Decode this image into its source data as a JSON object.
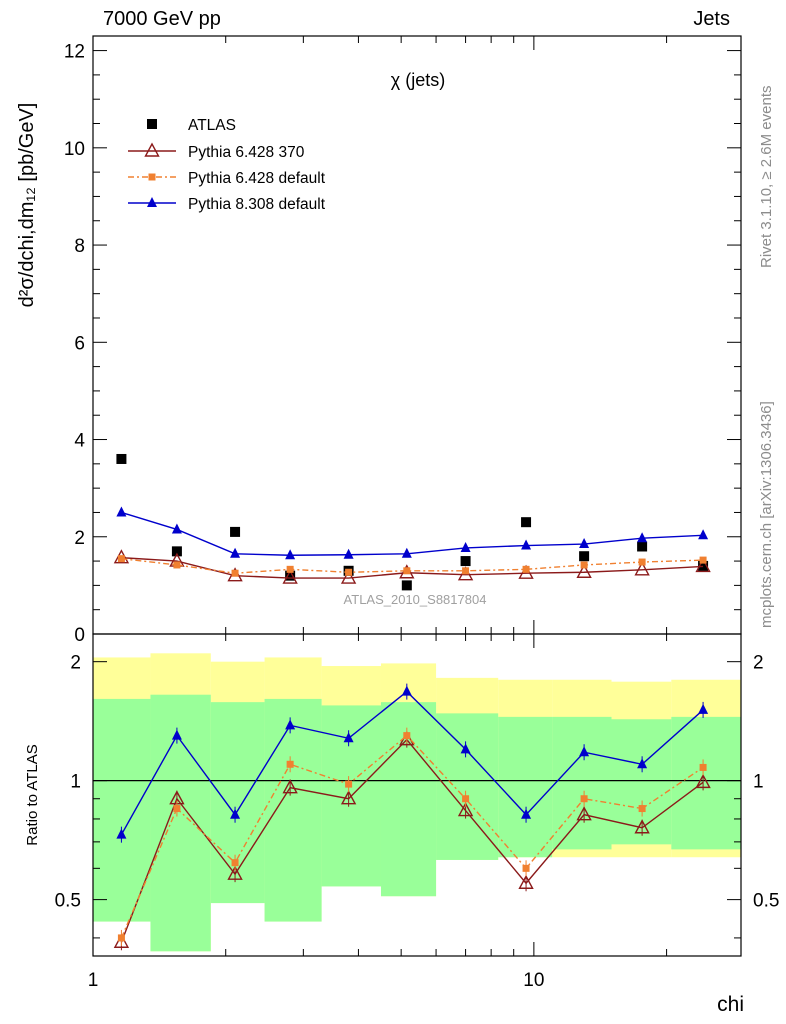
{
  "header": {
    "energy_label": "7000 GeV pp",
    "process_label": "Jets"
  },
  "side": {
    "rivet_label": "Rivet 3.1.10, ≥ 2.6M events",
    "mcplots_label": "mcplots.cern.ch [arXiv:1306.3436]"
  },
  "chart_data": [
    {
      "type": "scatter",
      "panel": "main",
      "title": "χ (jets)",
      "ylabel": "d²σ/dchi,dm₁₂ [pb/GeV]",
      "xlabel": "chi",
      "xscale": "log",
      "xlim": [
        1,
        29.5
      ],
      "ylim": [
        0,
        12.3
      ],
      "yticks": [
        "0",
        "2",
        "4",
        "6",
        "8",
        "10",
        "12"
      ],
      "xticks": [
        "1",
        "10"
      ],
      "watermark": "ATLAS_2010_S8817804",
      "legend_position": "top-left",
      "x": [
        1.16,
        1.55,
        2.1,
        2.8,
        3.8,
        5.15,
        7.0,
        9.6,
        13.0,
        17.6,
        24.2
      ],
      "series": [
        {
          "name": "ATLAS",
          "color": "#000000",
          "marker": "square",
          "line": "none",
          "values": [
            3.6,
            1.7,
            2.1,
            1.2,
            1.3,
            1.0,
            1.5,
            2.3,
            1.6,
            1.8,
            1.4
          ]
        },
        {
          "name": "Pythia 6.428 370",
          "color": "#8b1a1a",
          "marker": "open-triangle",
          "line": "solid",
          "values": [
            1.57,
            1.5,
            1.2,
            1.15,
            1.15,
            1.26,
            1.22,
            1.25,
            1.27,
            1.32,
            1.39
          ]
        },
        {
          "name": "Pythia 6.428 default",
          "color": "#f08030",
          "marker": "square-small",
          "line": "dashdot",
          "values": [
            1.55,
            1.42,
            1.25,
            1.33,
            1.27,
            1.3,
            1.3,
            1.33,
            1.42,
            1.48,
            1.52
          ]
        },
        {
          "name": "Pythia 8.308 default",
          "color": "#0000cc",
          "marker": "triangle",
          "line": "solid",
          "values": [
            2.5,
            2.15,
            1.65,
            1.62,
            1.63,
            1.65,
            1.77,
            1.82,
            1.85,
            1.97,
            2.03
          ]
        }
      ]
    },
    {
      "type": "line",
      "panel": "ratio",
      "ylabel": "Ratio to ATLAS",
      "xlabel": "chi",
      "xscale": "log",
      "yscale": "log",
      "ylim": [
        0.36,
        2.35
      ],
      "yticks": [
        "0.5",
        "1",
        "2"
      ],
      "xticks": [
        "1",
        "10"
      ],
      "bin_edges": [
        1.0,
        1.35,
        1.85,
        2.45,
        3.3,
        4.5,
        6.0,
        8.3,
        11.0,
        15.0,
        20.5,
        29.5
      ],
      "band_outer": {
        "color": "#ffff99",
        "lower": [
          0.44,
          0.37,
          0.49,
          0.44,
          0.54,
          0.51,
          0.63,
          0.64,
          0.64,
          0.64,
          0.64
        ],
        "upper": [
          2.05,
          2.1,
          2.0,
          2.05,
          1.95,
          1.98,
          1.82,
          1.8,
          1.8,
          1.78,
          1.8
        ]
      },
      "band_inner": {
        "color": "#99ff99",
        "lower": [
          0.44,
          0.37,
          0.49,
          0.44,
          0.54,
          0.51,
          0.63,
          0.64,
          0.67,
          0.69,
          0.67
        ],
        "upper": [
          1.61,
          1.65,
          1.58,
          1.61,
          1.55,
          1.58,
          1.48,
          1.45,
          1.45,
          1.43,
          1.45
        ]
      },
      "x": [
        1.16,
        1.55,
        2.1,
        2.8,
        3.8,
        5.15,
        7.0,
        9.6,
        13.0,
        17.6,
        24.2
      ],
      "series": [
        {
          "name": "Pythia 6.428 370",
          "color": "#8b1a1a",
          "marker": "open-triangle",
          "line": "solid",
          "values": [
            0.39,
            0.9,
            0.58,
            0.96,
            0.9,
            1.27,
            0.84,
            0.55,
            0.82,
            0.76,
            0.99
          ]
        },
        {
          "name": "Pythia 6.428 default",
          "color": "#f08030",
          "marker": "square-small",
          "line": "dashdot",
          "values": [
            0.4,
            0.85,
            0.62,
            1.1,
            0.98,
            1.3,
            0.9,
            0.6,
            0.9,
            0.85,
            1.08
          ]
        },
        {
          "name": "Pythia 8.308 default",
          "color": "#0000cc",
          "marker": "triangle",
          "line": "solid",
          "values": [
            0.73,
            1.3,
            0.82,
            1.38,
            1.28,
            1.68,
            1.2,
            0.82,
            1.18,
            1.1,
            1.51
          ]
        }
      ]
    }
  ]
}
